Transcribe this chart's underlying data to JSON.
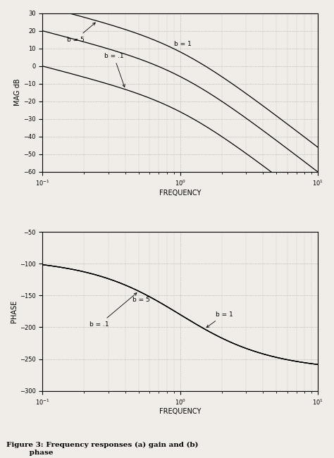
{
  "b_values": [
    5,
    1,
    0.1
  ],
  "freq_range": [
    0.1,
    10
  ],
  "mag_ylim": [
    -60,
    30
  ],
  "mag_yticks": [
    -60,
    -50,
    -40,
    -30,
    -20,
    -10,
    0,
    10,
    20,
    30
  ],
  "phase_ylim": [
    -300,
    -50
  ],
  "phase_yticks": [
    -300,
    -250,
    -200,
    -150,
    -100,
    -50
  ],
  "mag_ylabel": "MAG dB",
  "phase_ylabel": "PHASE",
  "xlabel": "FREQUENCY",
  "figure_caption": "Figure 3: Frequency responses (a) gain and (b)\n         phase",
  "grid_color": "#999999",
  "line_color": "#000000",
  "bg_color": "#f0ede8"
}
